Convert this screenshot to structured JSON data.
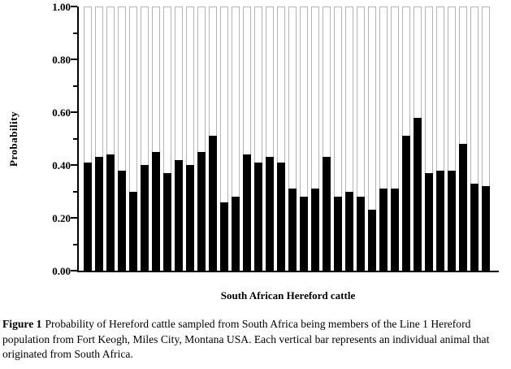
{
  "figure": {
    "caption_label": "Figure 1",
    "caption_text": "Probability of Hereford cattle sampled from South Africa being members of the Line 1 Hereford population from Fort Keogh, Miles City, Montana USA. Each vertical bar represents an individual animal that originated from South Africa."
  },
  "chart_data": {
    "type": "bar",
    "title": "",
    "xlabel": "South African Hereford cattle",
    "ylabel": "Probability",
    "ylim": [
      0.0,
      1.0
    ],
    "grid": false,
    "legend": false,
    "bar_fill_color": "#000000",
    "bar_outline_color": "#b4b4b4",
    "background_color": "#ffffff",
    "bar_background_extends_to": 1.0,
    "yticks": [
      {
        "value": 0.0,
        "label": "0.00"
      },
      {
        "value": 0.2,
        "label": "0.20"
      },
      {
        "value": 0.4,
        "label": "0.40"
      },
      {
        "value": 0.6,
        "label": "0.60"
      },
      {
        "value": 0.8,
        "label": "0.80"
      },
      {
        "value": 1.0,
        "label": "1.00"
      }
    ],
    "yticks_minor": [
      0.1,
      0.3,
      0.5,
      0.7,
      0.9
    ],
    "values": [
      0.41,
      0.43,
      0.44,
      0.38,
      0.3,
      0.4,
      0.45,
      0.37,
      0.42,
      0.4,
      0.45,
      0.51,
      0.26,
      0.28,
      0.44,
      0.41,
      0.43,
      0.41,
      0.31,
      0.28,
      0.31,
      0.43,
      0.28,
      0.3,
      0.28,
      0.23,
      0.31,
      0.31,
      0.51,
      0.58,
      0.37,
      0.38,
      0.38,
      0.48,
      0.33,
      0.32
    ]
  }
}
